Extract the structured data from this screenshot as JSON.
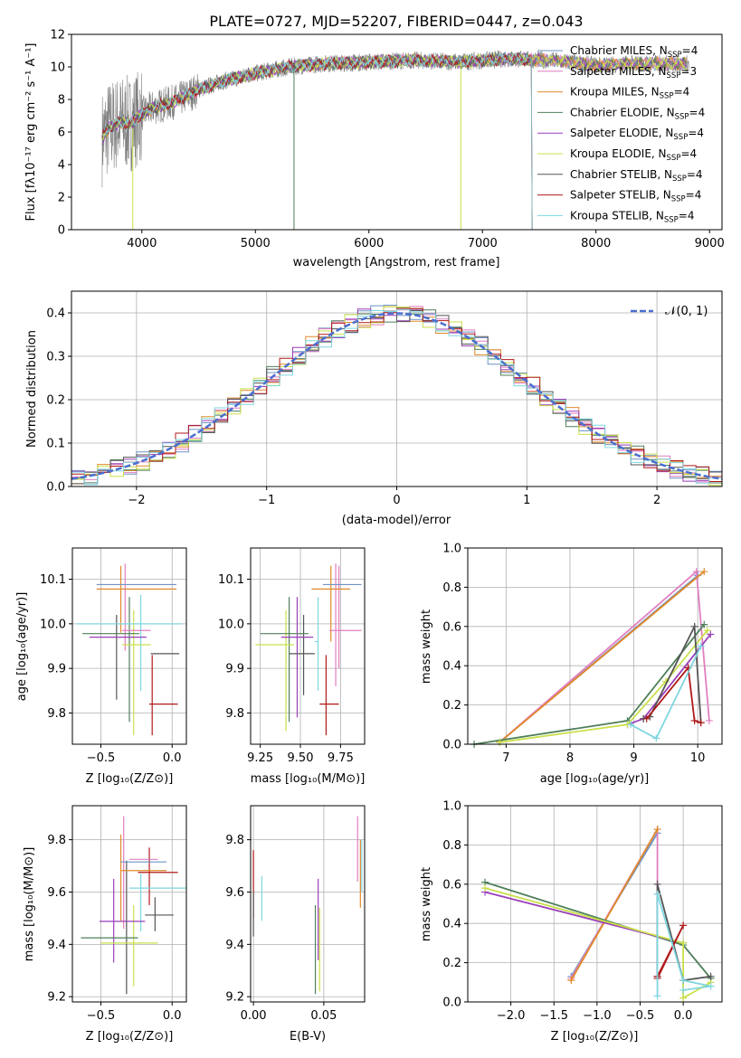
{
  "figure_title": "PLATE=0727, MJD=52207, FIBERID=0447, z=0.043",
  "colors": {
    "Chabrier MILES": "#6f93c4",
    "Salpeter MILES": "#e07fc0",
    "Kroupa MILES": "#e08a2a",
    "Chabrier ELODIE": "#4f7f5a",
    "Salpeter ELODIE": "#9a3fba",
    "Kroupa ELODIE": "#c9e04a",
    "Chabrier STELIB": "#555555",
    "Salpeter STELIB": "#b01a1a",
    "Kroupa STELIB": "#7fd6e0",
    "data": "#808080",
    "normal": "#4a6fd0"
  },
  "chart_data": [
    {
      "type": "line",
      "id": "spectrum",
      "title": "PLATE=0727, MJD=52207, FIBERID=0447, z=0.043",
      "xlabel": "wavelength [Angstrom, rest frame]",
      "ylabel": "Flux [fλ10⁻¹⁷ erg cm⁻² s⁻¹ A⁻¹]",
      "xlim": [
        3380,
        9110
      ],
      "ylim": [
        0,
        12
      ],
      "xticks": [
        "4000",
        "5000",
        "6000",
        "7000",
        "8000",
        "9000"
      ],
      "yticks": [
        "0",
        "2",
        "4",
        "6",
        "8",
        "10",
        "12"
      ],
      "continuum_x": [
        3650,
        3700,
        3800,
        3900,
        4000,
        4100,
        4200,
        4300,
        4500,
        4700,
        5000,
        5300,
        5600,
        6000,
        6400,
        6800,
        7200,
        7600,
        8000,
        8400,
        8800
      ],
      "continuum_y": [
        5.6,
        6.2,
        6.6,
        6.5,
        7.1,
        7.5,
        7.7,
        7.9,
        8.6,
        9.1,
        9.6,
        10.0,
        10.2,
        10.3,
        10.4,
        10.3,
        10.5,
        10.4,
        10.1,
        10.2,
        10.2
      ],
      "legend": [
        {
          "label": "Chabrier MILES, N",
          "nssp": "4"
        },
        {
          "label": "Salpeter MILES, N",
          "nssp": "3"
        },
        {
          "label": "Kroupa MILES, N",
          "nssp": "4"
        },
        {
          "label": "Chabrier ELODIE, N",
          "nssp": "4"
        },
        {
          "label": "Salpeter ELODIE, N",
          "nssp": "4"
        },
        {
          "label": "Kroupa ELODIE, N",
          "nssp": "4"
        },
        {
          "label": "Chabrier STELIB, N",
          "nssp": "4"
        },
        {
          "label": "Salpeter STELIB, N",
          "nssp": "4"
        },
        {
          "label": "Kroupa STELIB, N",
          "nssp": "4"
        }
      ],
      "legend_sub": "SSP"
    },
    {
      "type": "line",
      "id": "residuals",
      "xlabel": "(data-model)/error",
      "ylabel": "Normed distribution",
      "xlim": [
        -2.5,
        2.5
      ],
      "ylim": [
        0,
        0.45
      ],
      "xticks": [
        "−2",
        "−1",
        "0",
        "1",
        "2"
      ],
      "yticks": [
        "0.0",
        "0.1",
        "0.2",
        "0.3",
        "0.4"
      ],
      "series": [
        {
          "name": "𝒩(0, 1)"
        }
      ]
    },
    {
      "type": "scatter",
      "id": "age_vs_Z",
      "xlabel": "Z [log₁₀(Z/Z⊙)]",
      "ylabel": "age  [log₁₀(age/yr)]",
      "xlim": [
        -0.7,
        0.1
      ],
      "ylim": [
        9.73,
        10.17
      ],
      "xticks": [
        "−0.5",
        "0.0"
      ],
      "yticks": [
        "9.8",
        "9.9",
        "10.0",
        "10.1"
      ],
      "points": [
        {
          "model": "Chabrier MILES",
          "x": -0.25,
          "xerr": 0.28,
          "y": 10.088,
          "yerr": 0.001
        },
        {
          "model": "Salpeter MILES",
          "x": -0.25,
          "xerr": 0.1,
          "y": 9.985,
          "yerr": 0.001
        },
        {
          "model": "Kroupa MILES",
          "x": -0.25,
          "xerr": 0.28,
          "y": 10.078,
          "yerr": 0.001
        },
        {
          "model": "Chabrier ELODIE",
          "x": -0.43,
          "xerr": 0.2,
          "y": 9.978,
          "yerr": 0.2
        },
        {
          "model": "Salpeter ELODIE",
          "x": -0.38,
          "xerr": 0.2,
          "y": 9.97,
          "yerr": 0.19
        },
        {
          "model": "Kroupa ELODIE",
          "x": -0.25,
          "xerr": 0.1,
          "y": 9.953,
          "yerr": 0.2
        },
        {
          "model": "Chabrier STELIB",
          "x": -0.05,
          "xerr": 0.1,
          "y": 9.933,
          "yerr": 0.11
        },
        {
          "model": "Salpeter STELIB",
          "x": -0.06,
          "xerr": 0.1,
          "y": 9.82,
          "yerr": 0.11
        },
        {
          "model": "Kroupa STELIB",
          "x": -0.3,
          "xerr": 0.37,
          "y": 10.0,
          "yerr": 0.001
        }
      ],
      "vlines": [
        {
          "model": "Salpeter MILES",
          "x": -0.33,
          "y1": 9.94,
          "y2": 10.135
        },
        {
          "model": "Kroupa MILES",
          "x": -0.36,
          "y1": 9.98,
          "y2": 10.13
        },
        {
          "model": "Chabrier STELIB",
          "x": -0.39,
          "y1": 9.83,
          "y2": 10.02
        },
        {
          "model": "Kroupa ELODIE",
          "x": -0.27,
          "y1": 9.75,
          "y2": 10.03
        },
        {
          "model": "Chabrier ELODIE",
          "x": -0.3,
          "y1": 9.78,
          "y2": 10.06
        },
        {
          "model": "Kroupa STELIB",
          "x": -0.22,
          "y1": 9.85,
          "y2": 10.065
        },
        {
          "model": "Salpeter STELIB",
          "x": -0.14,
          "y1": 9.75,
          "y2": 9.93
        }
      ]
    },
    {
      "type": "scatter",
      "id": "age_vs_mass",
      "xlabel": "mass [log₁₀(M/M⊙)]",
      "xlim": [
        9.19,
        9.9
      ],
      "ylim": [
        9.73,
        10.17
      ],
      "xticks": [
        "9.25",
        "9.50",
        "9.75"
      ],
      "yticks": [
        "9.8",
        "9.9",
        "10.0",
        "10.1"
      ],
      "points": [
        {
          "model": "Chabrier MILES",
          "x": 9.76,
          "xerr": 0.12,
          "y": 10.088,
          "yerr": 0.001
        },
        {
          "model": "Salpeter MILES",
          "x": 9.78,
          "xerr": 0.1,
          "y": 9.985,
          "yerr": 0.001
        },
        {
          "model": "Kroupa MILES",
          "x": 9.69,
          "xerr": 0.12,
          "y": 10.078,
          "yerr": 0.001
        },
        {
          "model": "Chabrier ELODIE",
          "x": 9.4,
          "xerr": 0.15,
          "y": 9.978,
          "yerr": 0.001
        },
        {
          "model": "Salpeter ELODIE",
          "x": 9.48,
          "xerr": 0.1,
          "y": 9.97,
          "yerr": 0.001
        },
        {
          "model": "Kroupa ELODIE",
          "x": 9.34,
          "xerr": 0.12,
          "y": 9.953,
          "yerr": 0.001
        },
        {
          "model": "Chabrier STELIB",
          "x": 9.51,
          "xerr": 0.08,
          "y": 9.933,
          "yerr": 0.001
        },
        {
          "model": "Salpeter STELIB",
          "x": 9.68,
          "xerr": 0.06,
          "y": 9.82,
          "yerr": 0.001
        },
        {
          "model": "Kroupa STELIB",
          "x": 9.6,
          "xerr": 0.01,
          "y": 9.96,
          "yerr": 0.001
        }
      ],
      "vlines": [
        {
          "model": "Salpeter MILES",
          "x": 9.72,
          "y1": 9.86,
          "y2": 10.135
        },
        {
          "model": "Kroupa MILES",
          "x": 9.69,
          "y1": 9.96,
          "y2": 10.13
        },
        {
          "model": "Chabrier ELODIE",
          "x": 9.43,
          "y1": 9.78,
          "y2": 10.06
        },
        {
          "model": "Salpeter ELODIE",
          "x": 9.48,
          "y1": 9.79,
          "y2": 10.06
        },
        {
          "model": "Kroupa ELODIE",
          "x": 9.41,
          "y1": 9.76,
          "y2": 10.03
        },
        {
          "model": "Chabrier STELIB",
          "x": 9.52,
          "y1": 9.84,
          "y2": 10.02
        },
        {
          "model": "Kroupa STELIB",
          "x": 9.61,
          "y1": 9.85,
          "y2": 10.06
        },
        {
          "model": "Salpeter STELIB",
          "x": 9.66,
          "y1": 9.75,
          "y2": 9.93
        },
        {
          "model": "Salpeter MILES",
          "x": 9.74,
          "y1": 9.9,
          "y2": 10.13
        }
      ]
    },
    {
      "type": "line",
      "id": "mass_weight_vs_age",
      "xlabel": "age  [log₁₀(age/yr)]",
      "ylabel": "mass weight",
      "xlim": [
        6.4,
        10.38
      ],
      "ylim": [
        0,
        1
      ],
      "xticks": [
        "7",
        "8",
        "9",
        "10"
      ],
      "yticks": [
        "0.0",
        "0.2",
        "0.4",
        "0.6",
        "0.8",
        "1.0"
      ],
      "series": [
        {
          "model": "Chabrier MILES",
          "x": [
            6.9,
            10.0
          ],
          "y": [
            0.01,
            0.86
          ]
        },
        {
          "model": "Salpeter MILES",
          "x": [
            6.9,
            9.98,
            10.18
          ],
          "y": [
            0.01,
            0.88,
            0.12
          ]
        },
        {
          "model": "Kroupa MILES",
          "x": [
            6.9,
            10.1
          ],
          "y": [
            0.01,
            0.88
          ]
        },
        {
          "model": "Chabrier ELODIE",
          "x": [
            6.5,
            8.9,
            10.1
          ],
          "y": [
            0.0,
            0.12,
            0.61
          ]
        },
        {
          "model": "Salpeter ELODIE",
          "x": [
            8.9,
            9.15,
            10.2
          ],
          "y": [
            0.1,
            0.13,
            0.56
          ]
        },
        {
          "model": "Kroupa ELODIE",
          "x": [
            6.9,
            8.9,
            9.5,
            10.15
          ],
          "y": [
            0.01,
            0.1,
            0.32,
            0.58
          ]
        },
        {
          "model": "Chabrier STELIB",
          "x": [
            9.15,
            9.25,
            9.95,
            10.05
          ],
          "y": [
            0.13,
            0.14,
            0.6,
            0.11
          ]
        },
        {
          "model": "Salpeter STELIB",
          "x": [
            9.2,
            9.85,
            9.95,
            10.05
          ],
          "y": [
            0.13,
            0.39,
            0.12,
            0.11
          ]
        },
        {
          "model": "Kroupa STELIB",
          "x": [
            8.95,
            9.35,
            10.05
          ],
          "y": [
            0.1,
            0.03,
            0.5
          ]
        }
      ]
    },
    {
      "type": "scatter",
      "id": "mass_vs_Z",
      "xlabel": "Z [log₁₀(Z/Z⊙)]",
      "ylabel": "mass [log₁₀(M/M⊙)]",
      "xlim": [
        -0.7,
        0.1
      ],
      "ylim": [
        9.18,
        9.93
      ],
      "xticks": [
        "−0.5",
        "0.0"
      ],
      "yticks": [
        "9.2",
        "9.4",
        "9.6",
        "9.8"
      ],
      "points": [
        {
          "model": "Chabrier MILES",
          "x": -0.2,
          "xerr": 0.16,
          "y": 9.715
        },
        {
          "model": "Salpeter MILES",
          "x": -0.2,
          "xerr": 0.1,
          "y": 9.725
        },
        {
          "model": "Kroupa MILES",
          "x": -0.2,
          "xerr": 0.16,
          "y": 9.682
        },
        {
          "model": "Chabrier ELODIE",
          "x": -0.44,
          "xerr": 0.2,
          "y": 9.425
        },
        {
          "model": "Salpeter ELODIE",
          "x": -0.35,
          "xerr": 0.16,
          "y": 9.488
        },
        {
          "model": "Kroupa ELODIE",
          "x": -0.3,
          "xerr": 0.2,
          "y": 9.405
        },
        {
          "model": "Chabrier STELIB",
          "x": -0.09,
          "xerr": 0.1,
          "y": 9.512
        },
        {
          "model": "Salpeter STELIB",
          "x": -0.1,
          "xerr": 0.14,
          "y": 9.675
        },
        {
          "model": "Kroupa STELIB",
          "x": -0.1,
          "xerr": 0.2,
          "y": 9.615
        }
      ],
      "vlines": [
        {
          "model": "Salpeter MILES",
          "x": -0.34,
          "y1": 9.46,
          "y2": 9.89
        },
        {
          "model": "Kroupa MILES",
          "x": -0.36,
          "y1": 9.49,
          "y2": 9.82
        },
        {
          "model": "Salpeter ELODIE",
          "x": -0.41,
          "y1": 9.33,
          "y2": 9.65
        },
        {
          "model": "Chabrier STELIB",
          "x": -0.32,
          "y1": 9.21,
          "y2": 9.72
        },
        {
          "model": "Kroupa ELODIE",
          "x": -0.27,
          "y1": 9.24,
          "y2": 9.55
        },
        {
          "model": "Kroupa STELIB",
          "x": -0.22,
          "y1": 9.45,
          "y2": 9.67
        },
        {
          "model": "Salpeter STELIB",
          "x": -0.16,
          "y1": 9.55,
          "y2": 9.77
        },
        {
          "model": "Chabrier STELIB",
          "x": -0.12,
          "y1": 9.45,
          "y2": 9.58
        }
      ]
    },
    {
      "type": "scatter",
      "id": "mass_vs_ebv",
      "xlabel": "E(B-V)",
      "xlim": [
        -0.002,
        0.079
      ],
      "ylim": [
        9.18,
        9.93
      ],
      "xticks": [
        "0.00",
        "0.05"
      ],
      "yticks": [
        "9.2",
        "9.4",
        "9.6",
        "9.8"
      ],
      "vlines": [
        {
          "model": "Salpeter STELIB",
          "x": 0.0,
          "y1": 9.5,
          "y2": 9.76
        },
        {
          "model": "Chabrier STELIB",
          "x": 0.0,
          "y1": 9.43,
          "y2": 9.6
        },
        {
          "model": "Kroupa STELIB",
          "x": 0.006,
          "y1": 9.49,
          "y2": 9.66
        },
        {
          "model": "Chabrier ELODIE",
          "x": 0.044,
          "y1": 9.21,
          "y2": 9.55
        },
        {
          "model": "Salpeter ELODIE",
          "x": 0.046,
          "y1": 9.34,
          "y2": 9.65
        },
        {
          "model": "Kroupa ELODIE",
          "x": 0.047,
          "y1": 9.22,
          "y2": 9.54
        },
        {
          "model": "Salpeter MILES",
          "x": 0.074,
          "y1": 9.64,
          "y2": 9.89
        },
        {
          "model": "Kroupa MILES",
          "x": 0.076,
          "y1": 9.54,
          "y2": 9.8
        },
        {
          "model": "Kroupa STELIB",
          "x": 0.077,
          "y1": 9.6,
          "y2": 9.8
        }
      ]
    },
    {
      "type": "line",
      "id": "mass_weight_vs_Z",
      "xlabel": "Z [log₁₀(Z/Z⊙)]",
      "ylabel": "mass weight",
      "xlim": [
        -2.5,
        0.45
      ],
      "ylim": [
        0,
        1
      ],
      "xticks": [
        "−2.0",
        "−1.5",
        "−1.0",
        "−0.5",
        "0.0"
      ],
      "yticks": [
        "0.0",
        "0.2",
        "0.4",
        "0.6",
        "0.8",
        "1.0"
      ],
      "series": [
        {
          "model": "Chabrier MILES",
          "x": [
            -1.3,
            -0.3
          ],
          "y": [
            0.13,
            0.86
          ]
        },
        {
          "model": "Salpeter MILES",
          "x": [
            -1.3,
            -0.3,
            -0.3
          ],
          "y": [
            0.12,
            0.88,
            0.12
          ]
        },
        {
          "model": "Kroupa MILES",
          "x": [
            -1.3,
            -0.3
          ],
          "y": [
            0.11,
            0.88
          ]
        },
        {
          "model": "Chabrier ELODIE",
          "x": [
            -2.3,
            0.0,
            0.32
          ],
          "y": [
            0.61,
            0.29,
            0.12
          ]
        },
        {
          "model": "Salpeter ELODIE",
          "x": [
            -2.3,
            0.0
          ],
          "y": [
            0.56,
            0.3
          ]
        },
        {
          "model": "Kroupa ELODIE",
          "x": [
            -2.3,
            0.0,
            0.0,
            0.32
          ],
          "y": [
            0.58,
            0.3,
            0.02,
            0.1
          ]
        },
        {
          "model": "Chabrier STELIB",
          "x": [
            -0.3,
            -0.3,
            0.0,
            0.32
          ],
          "y": [
            0.13,
            0.6,
            0.11,
            0.13
          ]
        },
        {
          "model": "Salpeter STELIB",
          "x": [
            -0.3,
            0.0,
            -0.3
          ],
          "y": [
            0.12,
            0.39,
            0.13
          ]
        },
        {
          "model": "Kroupa STELIB",
          "x": [
            -0.3,
            -0.3,
            0.0,
            0.32,
            0.0
          ],
          "y": [
            0.03,
            0.55,
            0.11,
            0.08,
            0.06
          ]
        }
      ]
    }
  ]
}
